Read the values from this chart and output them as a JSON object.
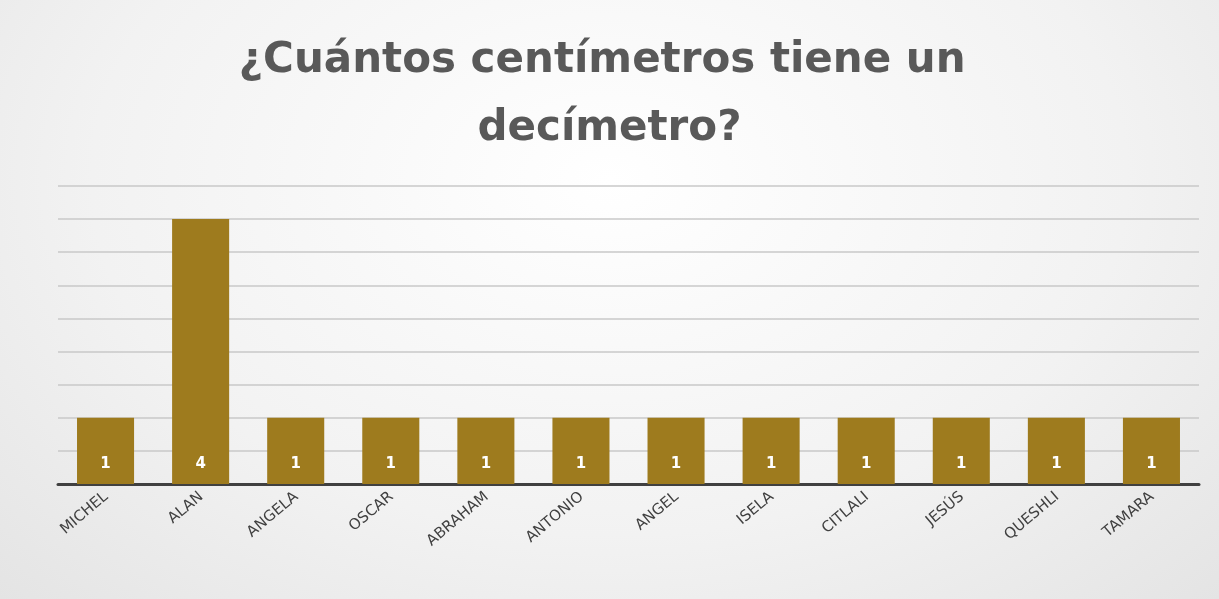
{
  "chart_data": {
    "type": "bar",
    "title": "¿Cuántos centímetros tiene un decímetro?",
    "categories": [
      "MICHEL",
      "ALAN",
      "ANGELA",
      "OSCAR",
      "ABRAHAM",
      "ANTONIO",
      "ANGEL",
      "ISELA",
      "CITLALI",
      "JESÚS",
      "QUESHLI",
      "TAMARA"
    ],
    "values": [
      1,
      4,
      1,
      1,
      1,
      1,
      1,
      1,
      1,
      1,
      1,
      1
    ],
    "color": "#9e7b1e",
    "ylim": [
      0,
      4.5
    ],
    "yticks": [
      {
        "value": 0,
        "label": null
      },
      {
        "value": 0.5,
        "label": null
      },
      {
        "value": 1,
        "label": null
      },
      {
        "value": 1.5,
        "label": null
      },
      {
        "value": 2,
        "label": null
      },
      {
        "value": 2.5,
        "label": null
      },
      {
        "value": 3,
        "label": null
      },
      {
        "value": 3.5,
        "label": null
      },
      {
        "value": 4,
        "label": null
      },
      {
        "value": 4.5,
        "label": null
      }
    ],
    "tick_labels": "x",
    "grid": "y",
    "data_labels": true
  }
}
